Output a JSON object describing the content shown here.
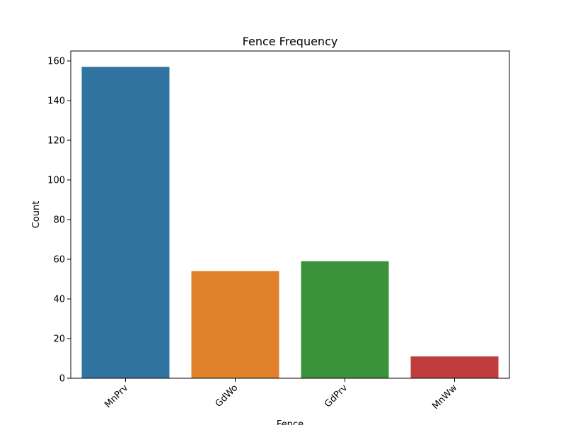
{
  "chart_data": {
    "type": "bar",
    "title": "Fence Frequency",
    "xlabel": "Fence",
    "ylabel": "Count",
    "categories": [
      "MnPrv",
      "GdWo",
      "GdPrv",
      "MnWw"
    ],
    "values": [
      157,
      54,
      59,
      11
    ],
    "colors": [
      "#3274a1",
      "#e1812c",
      "#3a923a",
      "#c03d3e"
    ],
    "ylim": [
      0,
      165
    ],
    "yticks": [
      0,
      20,
      40,
      60,
      80,
      100,
      120,
      140,
      160
    ],
    "grid": false,
    "legend": "none",
    "xtick_rotation": 45
  }
}
